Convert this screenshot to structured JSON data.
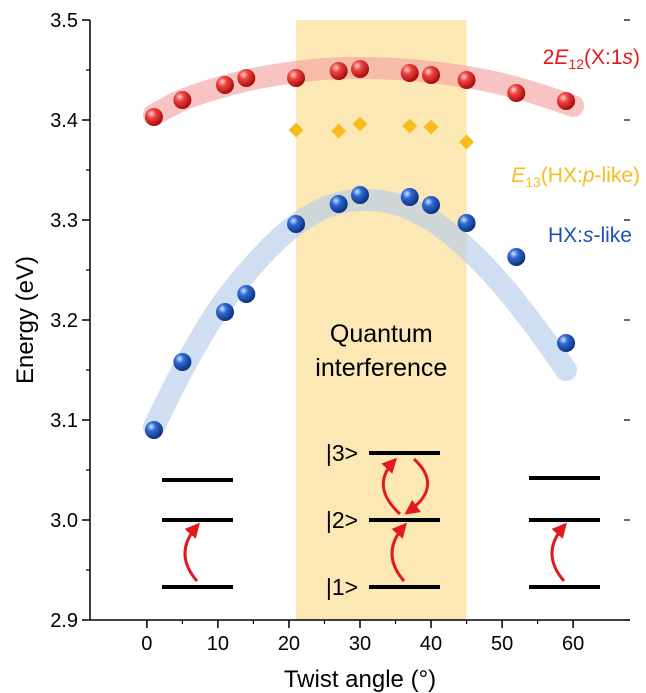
{
  "chart_data": {
    "type": "scatter",
    "xlabel": "Twist angle (°)",
    "ylabel": "Energy (eV)",
    "xlim": [
      -8,
      68
    ],
    "ylim": [
      2.9,
      3.5
    ],
    "x_ticks": [
      0,
      10,
      20,
      30,
      40,
      50,
      60
    ],
    "x_tick_labels": [
      "0",
      "10",
      "20",
      "30",
      "40",
      "50",
      "60"
    ],
    "y_ticks": [
      2.9,
      3.0,
      3.1,
      3.2,
      3.3,
      3.4,
      3.5
    ],
    "y_tick_labels": [
      "2.9",
      "3.0",
      "3.1",
      "3.2",
      "3.3",
      "3.4",
      "3.5"
    ],
    "grid": false,
    "highlight_band": {
      "x_range": [
        21,
        45
      ],
      "color": "#fce8b4"
    },
    "band_text": [
      "Quantum",
      "interference"
    ],
    "series": [
      {
        "label_parts": [
          {
            "t": "2"
          },
          {
            "t": "E",
            "i": true
          },
          {
            "t": "12",
            "sub": true
          },
          {
            "t": "(X:1"
          },
          {
            "t": "s",
            "i": true
          },
          {
            "t": ")"
          }
        ],
        "color": "#e3191c",
        "trend_color": "#f4a3a3",
        "marker": "sphere",
        "x": [
          1,
          5,
          11,
          14,
          21,
          27,
          30,
          37,
          40,
          45,
          52,
          59
        ],
        "y": [
          3.403,
          3.42,
          3.435,
          3.442,
          3.442,
          3.449,
          3.451,
          3.447,
          3.445,
          3.44,
          3.427,
          3.419
        ],
        "trend_x": [
          1,
          5,
          10,
          15,
          20,
          25,
          30,
          35,
          40,
          45,
          50,
          55,
          60
        ],
        "trend_y": [
          3.405,
          3.42,
          3.432,
          3.441,
          3.447,
          3.451,
          3.452,
          3.451,
          3.448,
          3.443,
          3.436,
          3.426,
          3.414
        ]
      },
      {
        "label_parts": [
          {
            "t": "E",
            "i": true
          },
          {
            "t": "13",
            "sub": true
          },
          {
            "t": "(HX:"
          },
          {
            "t": "p",
            "i": true
          },
          {
            "t": "-like)"
          }
        ],
        "color": "#f7bd1c",
        "marker": "diamond",
        "x": [
          21,
          27,
          30,
          37,
          40,
          45
        ],
        "y": [
          3.39,
          3.389,
          3.396,
          3.394,
          3.393,
          3.378
        ]
      },
      {
        "label_parts": [
          {
            "t": "HX:"
          },
          {
            "t": "s",
            "i": true
          },
          {
            "t": "-like"
          }
        ],
        "color": "#1a52b8",
        "trend_color": "#b7cceb",
        "marker": "sphere",
        "x": [
          1,
          5,
          11,
          14,
          21,
          27,
          30,
          37,
          40,
          45,
          52,
          59
        ],
        "y": [
          3.09,
          3.158,
          3.208,
          3.226,
          3.296,
          3.316,
          3.325,
          3.323,
          3.315,
          3.297,
          3.263,
          3.177
        ],
        "trend_x": [
          1,
          5,
          10,
          15,
          20,
          25,
          30,
          35,
          40,
          45,
          50,
          55,
          59
        ],
        "trend_y": [
          3.093,
          3.15,
          3.21,
          3.255,
          3.29,
          3.312,
          3.32,
          3.316,
          3.3,
          3.272,
          3.235,
          3.19,
          3.15
        ]
      }
    ],
    "level_diagrams": {
      "center_labels": [
        "|3>",
        "|2>",
        "|1>"
      ],
      "left": {
        "levels": [
          3.04,
          3.0,
          2.933
        ]
      },
      "center": {
        "levels": [
          3.067,
          3.0,
          2.933
        ]
      },
      "right": {
        "levels": [
          3.042,
          3.0,
          2.933
        ]
      }
    }
  }
}
